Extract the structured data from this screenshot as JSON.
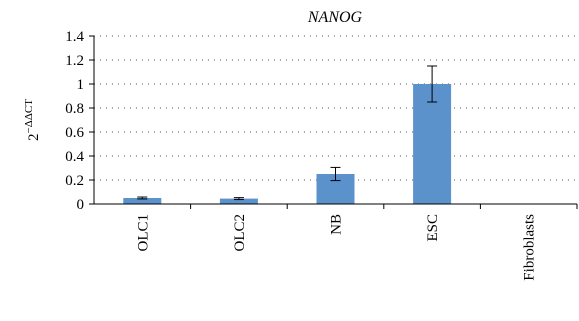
{
  "chart_data": {
    "type": "bar",
    "title": "NANOG",
    "ylabel": "2",
    "ylabel_sup": "−ΔΔCT",
    "xlabel": "",
    "categories": [
      "OLC1",
      "OLC2",
      "NB",
      "ESC",
      "Fibroblasts"
    ],
    "values": [
      0.05,
      0.045,
      0.25,
      1.0,
      0
    ],
    "errors": [
      0.008,
      0.008,
      0.055,
      0.15,
      0
    ],
    "ylim": [
      0,
      1.4
    ],
    "yticks": [
      "0",
      "0.2",
      "0.4",
      "0.6",
      "0.8",
      "1",
      "1.2",
      "1.4"
    ],
    "ytick_values": [
      0,
      0.2,
      0.4,
      0.6,
      0.8,
      1.0,
      1.2,
      1.4
    ],
    "grid": true,
    "bar_color": "#5b92cc",
    "legend": "none"
  }
}
